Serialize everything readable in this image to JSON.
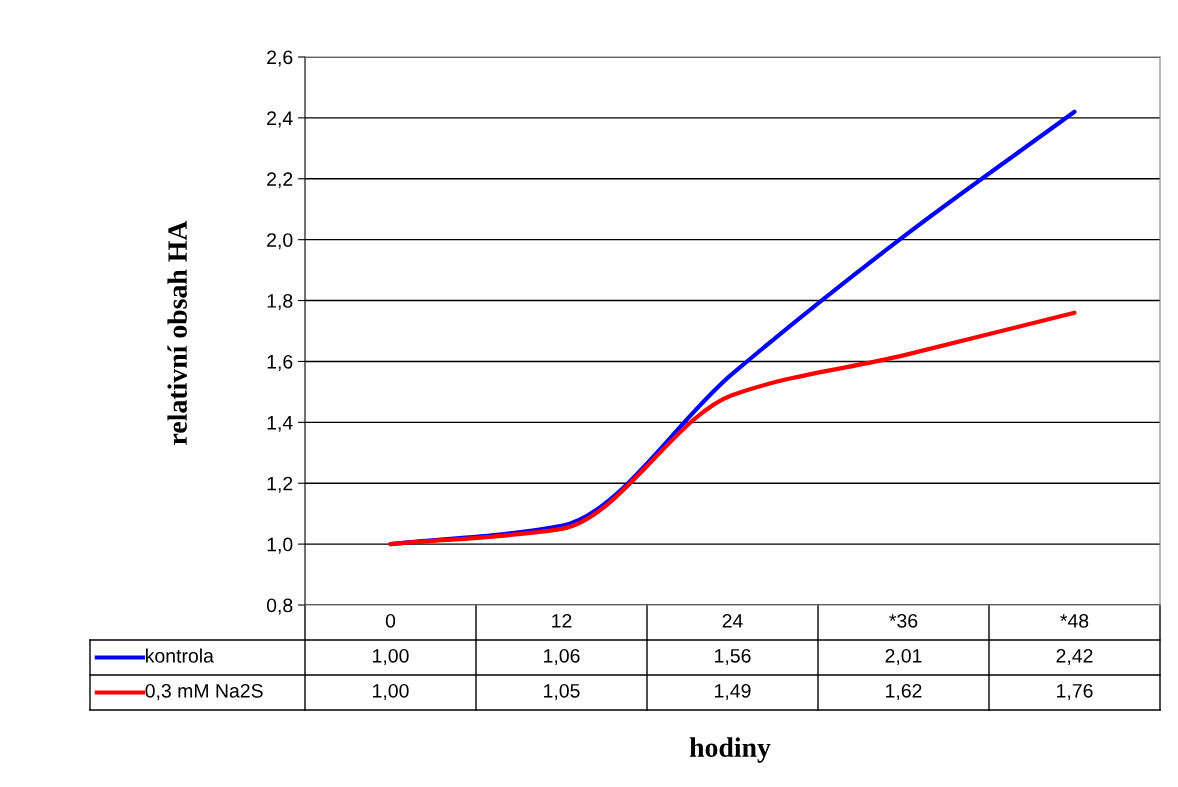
{
  "chart_data": {
    "type": "line",
    "xlabel": "hodiny",
    "ylabel": "relativní obsah HA",
    "categories": [
      "0",
      "12",
      "24",
      "*36",
      "*48"
    ],
    "series": [
      {
        "name": "kontrola",
        "color": "#0000ff",
        "values": [
          1.0,
          1.06,
          1.56,
          2.01,
          2.42
        ],
        "value_labels": [
          "1,00",
          "1,06",
          "1,56",
          "2,01",
          "2,42"
        ]
      },
      {
        "name": "0,3 mM Na2S",
        "color": "#ff0000",
        "values": [
          1.0,
          1.05,
          1.49,
          1.62,
          1.76
        ],
        "value_labels": [
          "1,00",
          "1,05",
          "1,49",
          "1,62",
          "1,76"
        ]
      }
    ],
    "ylim": [
      0.8,
      2.6
    ],
    "yticks": [
      {
        "value": 0.8,
        "label": "0,8"
      },
      {
        "value": 1.0,
        "label": "1,0"
      },
      {
        "value": 1.2,
        "label": "1,2"
      },
      {
        "value": 1.4,
        "label": "1,4"
      },
      {
        "value": 1.6,
        "label": "1,6"
      },
      {
        "value": 1.8,
        "label": "1,8"
      },
      {
        "value": 2.0,
        "label": "2,0"
      },
      {
        "value": 2.2,
        "label": "2,2"
      },
      {
        "value": 2.4,
        "label": "2,4"
      },
      {
        "value": 2.6,
        "label": "2,6"
      }
    ],
    "grid": "y",
    "legend": "bottom",
    "marker": "none",
    "line_style": "solid"
  }
}
